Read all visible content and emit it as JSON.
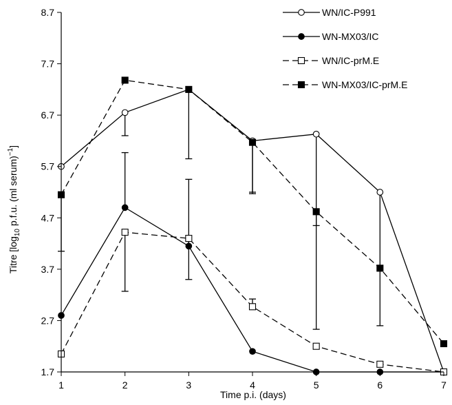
{
  "chart_data": {
    "type": "line",
    "title": "",
    "xlabel": "Time p.i. (days)",
    "ylabel": "Titre [log10 p.f.u. (ml serum)−1]",
    "ylabel_parts": {
      "prefix": "Titre [log",
      "subscript": "10",
      "middle": " p.f.u. (ml serum)",
      "superscript": "−1",
      "suffix": "]"
    },
    "xlim": [
      1,
      7
    ],
    "ylim": [
      1.7,
      8.7
    ],
    "x": [
      1,
      2,
      3,
      4,
      5,
      6,
      7
    ],
    "x_tick_labels": [
      "1",
      "2",
      "3",
      "4",
      "5",
      "6",
      "7"
    ],
    "y_tick_labels": [
      "1.7",
      "2.7",
      "3.7",
      "4.7",
      "5.7",
      "6.7",
      "7.7",
      "8.7"
    ],
    "grid": false,
    "legend_position": "top-right",
    "series": [
      {
        "name": "WN/IC-P991",
        "marker": "open-circle",
        "line": "solid",
        "values": [
          5.7,
          6.75,
          7.2,
          6.2,
          6.33,
          5.2,
          1.7
        ],
        "error_up": [
          0,
          0,
          0,
          0,
          0,
          0,
          0
        ],
        "error_down": [
          0,
          0.45,
          1.35,
          1.0,
          3.8,
          2.6,
          0
        ]
      },
      {
        "name": "WN-MX03/IC",
        "marker": "filled-circle",
        "line": "solid",
        "values": [
          2.8,
          4.9,
          4.15,
          2.1,
          1.7,
          1.7,
          1.7
        ],
        "error_up": [
          0,
          1.07,
          1.3,
          0,
          0,
          0,
          0
        ],
        "error_down": [
          0,
          0,
          0,
          0,
          0,
          0,
          0
        ]
      },
      {
        "name": "WN/IC-prM.E",
        "marker": "open-square",
        "line": "dashed",
        "values": [
          2.05,
          4.42,
          4.3,
          2.97,
          2.2,
          1.85,
          1.7
        ],
        "error_up": [
          0,
          0,
          0,
          0.15,
          0,
          0,
          0
        ],
        "error_down": [
          0,
          1.15,
          0.8,
          0,
          0,
          0,
          0
        ]
      },
      {
        "name": "WN-MX03/IC-prM.E",
        "marker": "filled-square",
        "line": "dashed",
        "values": [
          5.15,
          7.38,
          7.2,
          6.17,
          4.82,
          3.72,
          2.25
        ],
        "error_up": [
          0,
          0,
          0,
          0,
          0,
          0,
          0
        ],
        "error_down": [
          1.1,
          0,
          0,
          1.0,
          0.27,
          0,
          0
        ]
      }
    ]
  }
}
